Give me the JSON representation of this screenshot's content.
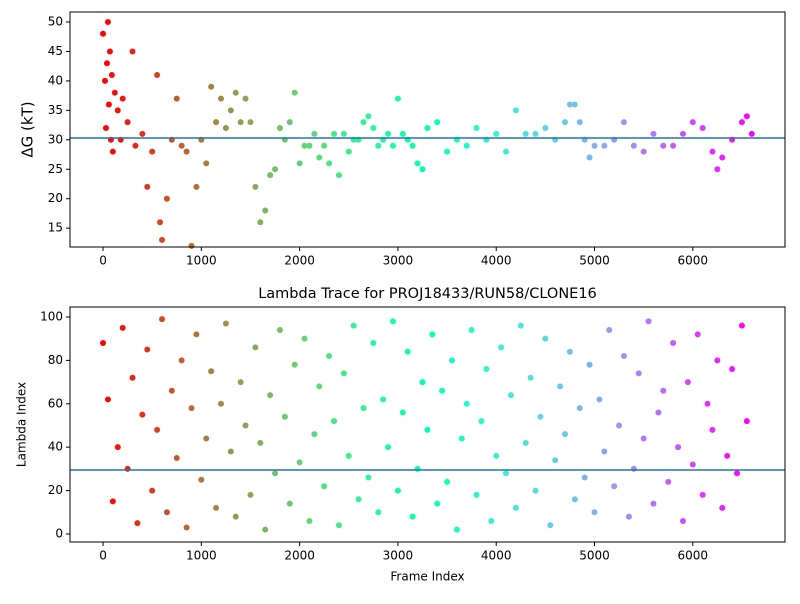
{
  "chart_data": [
    {
      "type": "scatter",
      "y_label": "ΔG (kT)",
      "colormap": "rainbow_r",
      "hline": 30.3,
      "hline_color": "#1f77b4",
      "x": [
        0,
        20,
        30,
        40,
        50,
        60,
        70,
        80,
        90,
        100,
        120,
        150,
        180,
        200,
        250,
        300,
        330,
        400,
        450,
        500,
        550,
        580,
        600,
        650,
        700,
        750,
        800,
        850,
        900,
        950,
        1000,
        1050,
        1100,
        1150,
        1200,
        1250,
        1300,
        1350,
        1400,
        1450,
        1500,
        1550,
        1600,
        1650,
        1700,
        1750,
        1800,
        1850,
        1900,
        1950,
        2000,
        2050,
        2100,
        2150,
        2200,
        2250,
        2300,
        2350,
        2400,
        2450,
        2500,
        2550,
        2600,
        2650,
        2700,
        2750,
        2800,
        2850,
        2900,
        2950,
        3000,
        3050,
        3100,
        3150,
        3200,
        3250,
        3300,
        3400,
        3500,
        3600,
        3700,
        3800,
        3900,
        4000,
        4100,
        4200,
        4300,
        4400,
        4500,
        4600,
        4700,
        4750,
        4800,
        4850,
        4900,
        4950,
        5000,
        5100,
        5200,
        5300,
        5400,
        5500,
        5600,
        5700,
        5800,
        5900,
        6000,
        6100,
        6200,
        6250,
        6300,
        6400,
        6500,
        6550,
        6600
      ],
      "values": [
        48,
        40,
        32,
        43,
        50,
        36,
        45,
        30,
        41,
        28,
        38,
        35,
        30,
        37,
        33,
        45,
        29,
        31,
        22,
        28,
        41,
        16,
        13,
        20,
        30,
        37,
        29,
        28,
        12,
        22,
        30,
        26,
        39,
        33,
        37,
        32,
        35,
        38,
        33,
        37,
        33,
        22,
        16,
        18,
        24,
        25,
        32,
        30,
        33,
        38,
        26,
        29,
        29,
        31,
        27,
        29,
        26,
        31,
        24,
        31,
        28,
        30,
        30,
        33,
        34,
        32,
        29,
        30,
        31,
        29,
        37,
        31,
        30,
        29,
        26,
        25,
        32,
        33,
        28,
        30,
        29,
        32,
        30,
        31,
        28,
        35,
        31,
        31,
        32,
        30,
        33,
        36,
        36,
        33,
        30,
        27,
        29,
        29,
        30,
        33,
        29,
        28,
        31,
        29,
        29,
        31,
        33,
        32,
        28,
        25,
        27,
        30,
        33,
        34,
        31
      ],
      "xlim": [
        -336,
        6938
      ],
      "ylim": [
        11.8,
        51.7
      ],
      "xticks": [
        0,
        1000,
        2000,
        3000,
        4000,
        5000,
        6000
      ],
      "yticks": [
        15,
        20,
        25,
        30,
        35,
        40,
        45,
        50
      ]
    },
    {
      "type": "scatter",
      "title": "Lambda Trace for PROJ18433/RUN58/CLONE16",
      "x_label": "Frame Index",
      "y_label": "Lambda Index",
      "colormap": "rainbow_r",
      "hline": 29.5,
      "hline_color": "#1f77b4",
      "x": [
        0,
        50,
        100,
        150,
        200,
        250,
        300,
        350,
        400,
        450,
        500,
        550,
        600,
        650,
        700,
        750,
        800,
        850,
        900,
        950,
        1000,
        1050,
        1100,
        1150,
        1200,
        1250,
        1300,
        1350,
        1400,
        1450,
        1500,
        1550,
        1600,
        1650,
        1700,
        1750,
        1800,
        1850,
        1900,
        1950,
        2000,
        2050,
        2100,
        2150,
        2200,
        2250,
        2300,
        2350,
        2400,
        2450,
        2500,
        2550,
        2600,
        2650,
        2700,
        2750,
        2800,
        2850,
        2900,
        2950,
        3000,
        3050,
        3100,
        3150,
        3200,
        3250,
        3300,
        3350,
        3400,
        3450,
        3500,
        3550,
        3600,
        3650,
        3700,
        3750,
        3800,
        3850,
        3900,
        3950,
        4000,
        4050,
        4100,
        4150,
        4200,
        4250,
        4300,
        4350,
        4400,
        4450,
        4500,
        4550,
        4600,
        4650,
        4700,
        4750,
        4800,
        4850,
        4900,
        4950,
        5000,
        5050,
        5100,
        5150,
        5200,
        5250,
        5300,
        5350,
        5400,
        5450,
        5500,
        5550,
        5600,
        5650,
        5700,
        5750,
        5800,
        5850,
        5900,
        5950,
        6000,
        6050,
        6100,
        6150,
        6200,
        6250,
        6300,
        6350,
        6400,
        6450,
        6500,
        6550
      ],
      "values": [
        88,
        62,
        15,
        40,
        95,
        30,
        72,
        5,
        55,
        85,
        20,
        48,
        99,
        10,
        66,
        35,
        80,
        3,
        58,
        92,
        25,
        44,
        75,
        12,
        60,
        97,
        38,
        8,
        70,
        50,
        18,
        86,
        42,
        2,
        64,
        28,
        94,
        54,
        14,
        78,
        33,
        90,
        6,
        46,
        68,
        22,
        82,
        52,
        4,
        74,
        36,
        96,
        16,
        58,
        26,
        88,
        10,
        62,
        40,
        98,
        20,
        56,
        84,
        8,
        30,
        70,
        48,
        92,
        14,
        66,
        24,
        80,
        2,
        44,
        60,
        94,
        18,
        52,
        76,
        6,
        36,
        86,
        28,
        64,
        12,
        96,
        42,
        72,
        20,
        54,
        90,
        4,
        34,
        68,
        46,
        84,
        16,
        58,
        26,
        78,
        10,
        62,
        38,
        94,
        22,
        50,
        82,
        8,
        30,
        74,
        44,
        98,
        14,
        56,
        66,
        24,
        88,
        40,
        6,
        70,
        32,
        92,
        18,
        60,
        48,
        80,
        12,
        36,
        76,
        28,
        96,
        52
      ],
      "xlim": [
        -336,
        6938
      ],
      "ylim": [
        -3.7,
        104.6
      ],
      "xticks": [
        0,
        1000,
        2000,
        3000,
        4000,
        5000,
        6000
      ],
      "yticks": [
        0,
        20,
        40,
        60,
        80,
        100
      ]
    }
  ]
}
